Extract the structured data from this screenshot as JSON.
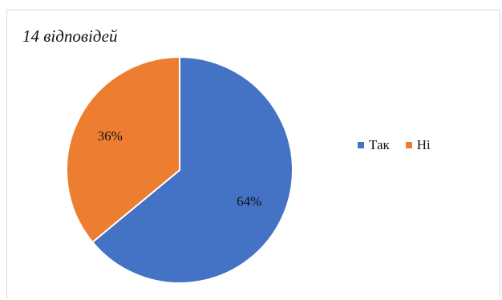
{
  "chart_data": {
    "type": "pie",
    "title": "14 відповідей",
    "categories": [
      "Так",
      "Ні"
    ],
    "values": [
      64,
      36
    ],
    "data_labels": [
      "64%",
      "36%"
    ],
    "colors": [
      "#4472C4",
      "#ED7D31"
    ],
    "legend_position": "right"
  }
}
